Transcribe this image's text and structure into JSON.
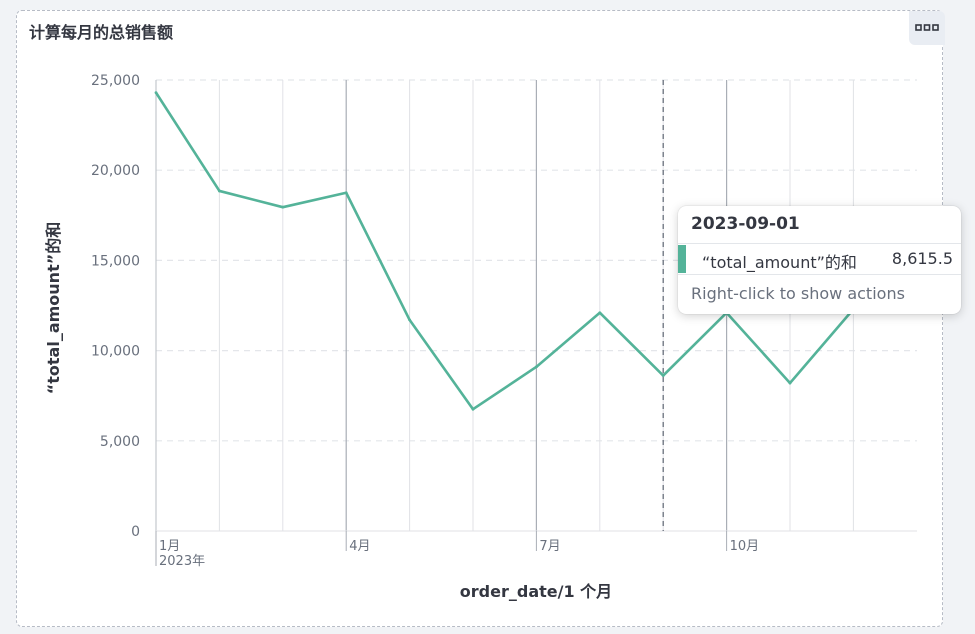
{
  "panel": {
    "title": "计算每月的总销售额",
    "options_icon": "more-horizontal-icon"
  },
  "tooltip": {
    "date": "2023-09-01",
    "series_label": "“total_amount”的和",
    "value": "8,615.5",
    "hint": "Right-click to show actions"
  },
  "colors": {
    "series": "#54b399",
    "grid_dashed": "#e4e6ea",
    "vertical_grid": "#e0e2e6",
    "vertical_grid_major": "#a9aeb6",
    "crosshair": "#69707d",
    "text": "#343741",
    "axis_text": "#69707d"
  },
  "chart_data": {
    "type": "line",
    "title": "",
    "xlabel": "order_date/1 个月",
    "ylabel": "“total_amount”的和",
    "ylim": [
      0,
      25000
    ],
    "yticks": [
      "0",
      "5,000",
      "10,000",
      "15,000",
      "20,000",
      "25,000"
    ],
    "ytick_values": [
      0,
      5000,
      10000,
      15000,
      20000,
      25000
    ],
    "x": [
      "2023-01",
      "2023-02",
      "2023-03",
      "2023-04",
      "2023-05",
      "2023-06",
      "2023-07",
      "2023-08",
      "2023-09",
      "2023-10",
      "2023-11",
      "2023-12"
    ],
    "xtick_labels": [
      {
        "month": "2023-01",
        "label": "1月",
        "sublabel": "2023年"
      },
      {
        "month": "2023-04",
        "label": "4月",
        "sublabel": ""
      },
      {
        "month": "2023-07",
        "label": "7月",
        "sublabel": ""
      },
      {
        "month": "2023-10",
        "label": "10月",
        "sublabel": ""
      }
    ],
    "series": [
      {
        "name": "“total_amount”的和",
        "values": [
          24300,
          18850,
          17950,
          18750,
          11700,
          6750,
          9100,
          12100,
          8615.5,
          12100,
          8200,
          12300
        ]
      }
    ],
    "crosshair_month": "2023-09",
    "grid": true,
    "legend": "none"
  }
}
